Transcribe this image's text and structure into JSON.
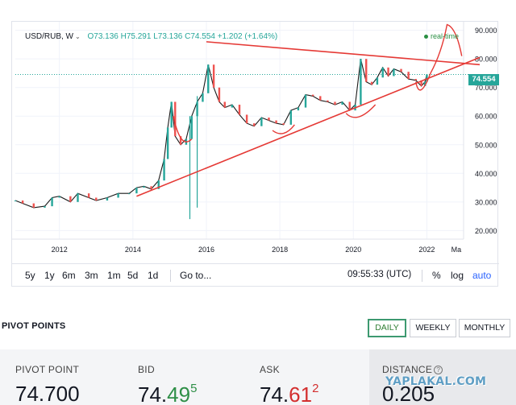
{
  "chart": {
    "symbol": "USD/RUB, W",
    "ohlc": "O73.136 H75.291 L73.136 C74.554 +1.202 (+1.64%)",
    "status": "real-time",
    "last_price": "74.554",
    "colors": {
      "up": "#26a69a",
      "down": "#ef5350",
      "annotation": "#e53935",
      "price_line": "#26a69a"
    }
  },
  "chart_data": {
    "type": "line",
    "title": "",
    "x_ticks": [
      "2012",
      "2014",
      "2016",
      "2018",
      "2020",
      "2022",
      "Ma"
    ],
    "y_ticks": [
      "90.000",
      "80.000",
      "70.000",
      "60.000",
      "50.000",
      "40.000",
      "30.000",
      "20.000"
    ],
    "x_range": [
      2010.8,
      2023.0
    ],
    "ylim": [
      17,
      93
    ],
    "series": [
      {
        "values": [
          [
            2010.8,
            30.5
          ],
          [
            2011.0,
            29.5
          ],
          [
            2011.3,
            28.0
          ],
          [
            2011.6,
            28.5
          ],
          [
            2011.8,
            31.5
          ],
          [
            2012.0,
            32.0
          ],
          [
            2012.3,
            30.0
          ],
          [
            2012.5,
            33.0
          ],
          [
            2012.8,
            31.5
          ],
          [
            2013.0,
            30.5
          ],
          [
            2013.3,
            31.5
          ],
          [
            2013.6,
            33.0
          ],
          [
            2013.9,
            33.0
          ],
          [
            2014.1,
            35.0
          ],
          [
            2014.3,
            35.5
          ],
          [
            2014.5,
            34.5
          ],
          [
            2014.7,
            37.5
          ],
          [
            2014.85,
            45.0
          ],
          [
            2014.95,
            56.0
          ],
          [
            2015.05,
            65.0
          ],
          [
            2015.15,
            53.0
          ],
          [
            2015.3,
            50.0
          ],
          [
            2015.45,
            52.0
          ],
          [
            2015.6,
            60.0
          ],
          [
            2015.75,
            65.0
          ],
          [
            2015.9,
            68.0
          ],
          [
            2016.05,
            78.0
          ],
          [
            2016.2,
            70.0
          ],
          [
            2016.35,
            65.0
          ],
          [
            2016.5,
            63.0
          ],
          [
            2016.7,
            64.0
          ],
          [
            2016.9,
            60.5
          ],
          [
            2017.1,
            57.5
          ],
          [
            2017.3,
            56.5
          ],
          [
            2017.5,
            59.5
          ],
          [
            2017.7,
            58.5
          ],
          [
            2017.9,
            57.5
          ],
          [
            2018.1,
            57.0
          ],
          [
            2018.3,
            62.0
          ],
          [
            2018.5,
            63.0
          ],
          [
            2018.7,
            67.5
          ],
          [
            2018.9,
            67.0
          ],
          [
            2019.1,
            65.5
          ],
          [
            2019.3,
            65.0
          ],
          [
            2019.5,
            64.0
          ],
          [
            2019.7,
            65.0
          ],
          [
            2019.9,
            62.0
          ],
          [
            2020.05,
            64.0
          ],
          [
            2020.2,
            80.0
          ],
          [
            2020.35,
            72.0
          ],
          [
            2020.5,
            71.0
          ],
          [
            2020.65,
            73.5
          ],
          [
            2020.8,
            77.0
          ],
          [
            2020.95,
            74.0
          ],
          [
            2021.1,
            76.5
          ],
          [
            2021.3,
            75.5
          ],
          [
            2021.5,
            73.0
          ],
          [
            2021.7,
            72.5
          ],
          [
            2021.85,
            70.5
          ],
          [
            2021.95,
            72.0
          ],
          [
            2022.0,
            74.554
          ]
        ]
      }
    ]
  },
  "toolbar": {
    "timeframes": [
      "5y",
      "1y",
      "6m",
      "3m",
      "1m",
      "5d",
      "1d"
    ],
    "goto": "Go to...",
    "clock": "09:55:33 (UTC)",
    "percent": "%",
    "log": "log",
    "auto": "auto"
  },
  "pivot": {
    "title": "PIVOT POINTS",
    "tabs": [
      "DAILY",
      "WEEKLY",
      "MONTHLY"
    ],
    "stats": {
      "pivot_point": {
        "label": "PIVOT POINT",
        "value": "74.700"
      },
      "bid": {
        "label": "BID",
        "value_main": "74.",
        "value_hl": "49",
        "value_sup": "5"
      },
      "ask": {
        "label": "ASK",
        "value_main": "74.",
        "value_hl": "61",
        "value_sup": "2"
      },
      "distance": {
        "label": "DISTANCE",
        "value": "0.205"
      }
    },
    "watermark": "YAPLAKAL.COM"
  }
}
